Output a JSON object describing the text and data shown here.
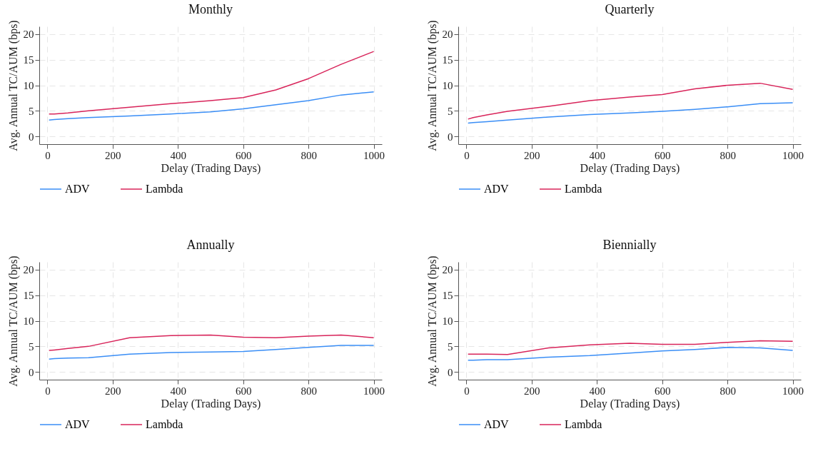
{
  "chart_data": [
    {
      "type": "line",
      "title": "Monthly",
      "xlabel": "Delay (Trading Days)",
      "ylabel": "Avg. Annual TC/AUM (bps)",
      "x": [
        5,
        21,
        63,
        126,
        252,
        378,
        500,
        600,
        700,
        800,
        900,
        1000
      ],
      "xlim": [
        -25,
        1025
      ],
      "ylim": [
        -1.5,
        21.5
      ],
      "xticks": [
        0,
        200,
        400,
        600,
        800,
        1000
      ],
      "yticks": [
        0,
        5,
        10,
        15,
        20
      ],
      "grid": true,
      "legend": "bottom",
      "series": [
        {
          "name": "ADV",
          "color": "#3a8ef6",
          "values": [
            3.2,
            3.3,
            3.5,
            3.7,
            4.0,
            4.4,
            4.8,
            5.4,
            6.2,
            7.0,
            8.1,
            8.7
          ]
        },
        {
          "name": "Lambda",
          "color": "#d8245a",
          "values": [
            4.4,
            4.4,
            4.6,
            5.0,
            5.7,
            6.4,
            7.0,
            7.6,
            9.1,
            11.3,
            14.1,
            16.6
          ]
        }
      ]
    },
    {
      "type": "line",
      "title": "Quarterly",
      "xlabel": "Delay (Trading Days)",
      "ylabel": "Avg. Annual TC/AUM (bps)",
      "x": [
        5,
        21,
        63,
        126,
        252,
        378,
        500,
        600,
        700,
        800,
        900,
        1000
      ],
      "xlim": [
        -25,
        1025
      ],
      "ylim": [
        -1.5,
        21.5
      ],
      "xticks": [
        0,
        200,
        400,
        600,
        800,
        1000
      ],
      "yticks": [
        0,
        5,
        10,
        15,
        20
      ],
      "grid": true,
      "legend": "bottom",
      "series": [
        {
          "name": "ADV",
          "color": "#3a8ef6",
          "values": [
            2.6,
            2.7,
            2.9,
            3.2,
            3.8,
            4.3,
            4.6,
            4.9,
            5.3,
            5.8,
            6.4,
            6.6
          ]
        },
        {
          "name": "Lambda",
          "color": "#d8245a",
          "values": [
            3.4,
            3.7,
            4.2,
            4.9,
            5.9,
            7.0,
            7.7,
            8.2,
            9.3,
            10.0,
            10.4,
            9.2
          ]
        }
      ]
    },
    {
      "type": "line",
      "title": "Annually",
      "xlabel": "Delay (Trading Days)",
      "ylabel": "Avg. Annual TC/AUM (bps)",
      "x": [
        5,
        21,
        63,
        126,
        252,
        378,
        500,
        600,
        700,
        800,
        900,
        1000
      ],
      "xlim": [
        -25,
        1025
      ],
      "ylim": [
        -1.5,
        21.5
      ],
      "xticks": [
        0,
        200,
        400,
        600,
        800,
        1000
      ],
      "yticks": [
        0,
        5,
        10,
        15,
        20
      ],
      "grid": true,
      "legend": "bottom",
      "series": [
        {
          "name": "ADV",
          "color": "#3a8ef6",
          "values": [
            2.5,
            2.6,
            2.7,
            2.8,
            3.5,
            3.8,
            3.9,
            4.0,
            4.4,
            4.8,
            5.2,
            5.2
          ]
        },
        {
          "name": "Lambda",
          "color": "#d8245a",
          "values": [
            4.2,
            4.3,
            4.6,
            5.0,
            6.7,
            7.1,
            7.2,
            6.8,
            6.7,
            7.0,
            7.2,
            6.7
          ]
        }
      ]
    },
    {
      "type": "line",
      "title": "Biennially",
      "xlabel": "Delay (Trading Days)",
      "ylabel": "Avg. Annual TC/AUM (bps)",
      "x": [
        5,
        21,
        63,
        126,
        252,
        378,
        500,
        600,
        700,
        800,
        900,
        1000
      ],
      "xlim": [
        -25,
        1025
      ],
      "ylim": [
        -1.5,
        21.5
      ],
      "xticks": [
        0,
        200,
        400,
        600,
        800,
        1000
      ],
      "yticks": [
        0,
        5,
        10,
        15,
        20
      ],
      "grid": true,
      "legend": "bottom",
      "series": [
        {
          "name": "ADV",
          "color": "#3a8ef6",
          "values": [
            2.3,
            2.3,
            2.4,
            2.4,
            2.9,
            3.2,
            3.7,
            4.1,
            4.4,
            4.8,
            4.7,
            4.2
          ]
        },
        {
          "name": "Lambda",
          "color": "#d8245a",
          "values": [
            3.5,
            3.5,
            3.5,
            3.4,
            4.7,
            5.3,
            5.6,
            5.4,
            5.4,
            5.8,
            6.1,
            6.0
          ]
        }
      ]
    }
  ]
}
